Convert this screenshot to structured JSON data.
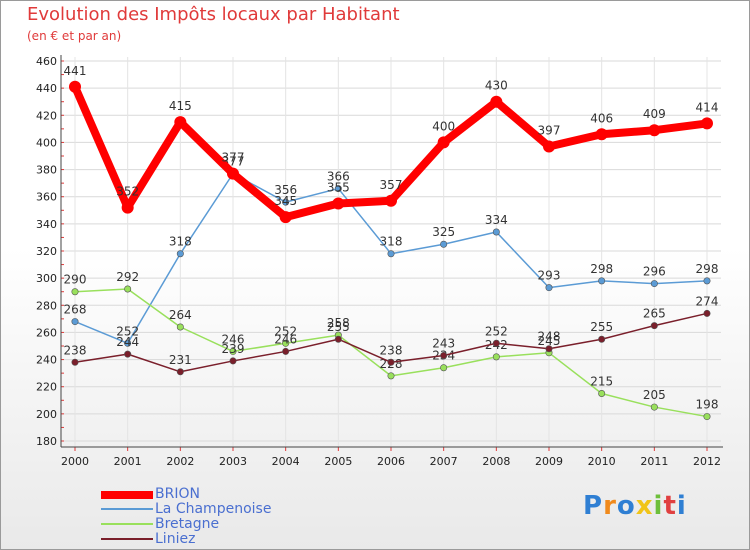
{
  "chart_data": {
    "type": "line",
    "title": "Evolution des Impôts locaux par Habitant",
    "subtitle": "(en € et par an)",
    "xlabel": "",
    "ylabel": "",
    "ylim": [
      180,
      460
    ],
    "yticks": [
      180,
      200,
      220,
      240,
      260,
      280,
      300,
      320,
      340,
      360,
      380,
      400,
      420,
      440,
      460
    ],
    "grid": true,
    "legend_position": "bottom-left",
    "categories": [
      "2000",
      "2001",
      "2002",
      "2003",
      "2004",
      "2005",
      "2006",
      "2007",
      "2008",
      "2009",
      "2010",
      "2011",
      "2012"
    ],
    "series": [
      {
        "name": "La Champenoise",
        "color": "#5b9bd5",
        "values": [
          268,
          252,
          318,
          377,
          356,
          366,
          318,
          325,
          334,
          293,
          298,
          296,
          298
        ]
      },
      {
        "name": "Bretagne",
        "color": "#99e05c",
        "values": [
          290,
          292,
          264,
          246,
          252,
          258,
          228,
          234,
          242,
          245,
          215,
          205,
          198
        ]
      },
      {
        "name": "Liniez",
        "color": "#7a1f2b",
        "values": [
          238,
          244,
          231,
          239,
          246,
          255,
          238,
          243,
          252,
          248,
          255,
          265,
          274
        ]
      },
      {
        "name": "BRION",
        "color": "#ff0000",
        "values": [
          441,
          352,
          415,
          377,
          345,
          355,
          357,
          400,
          430,
          397,
          406,
          409,
          414
        ]
      }
    ]
  },
  "legend": {
    "items": [
      {
        "label": "BRION",
        "color": "#ff0000"
      },
      {
        "label": "La Champenoise",
        "color": "#5b9bd5"
      },
      {
        "label": "Bretagne",
        "color": "#99e05c"
      },
      {
        "label": "Liniez",
        "color": "#7a1f2b"
      }
    ]
  },
  "logo": {
    "text": "Proxiti",
    "letters": [
      {
        "char": "P",
        "color": "#2f7fd3"
      },
      {
        "char": "r",
        "color": "#f08a1c"
      },
      {
        "char": "o",
        "color": "#2f7fd3"
      },
      {
        "char": "x",
        "color": "#f0c419"
      },
      {
        "char": "i",
        "color": "#6dbf3b"
      },
      {
        "char": "t",
        "color": "#e04040"
      },
      {
        "char": "i",
        "color": "#2f7fd3"
      }
    ]
  }
}
